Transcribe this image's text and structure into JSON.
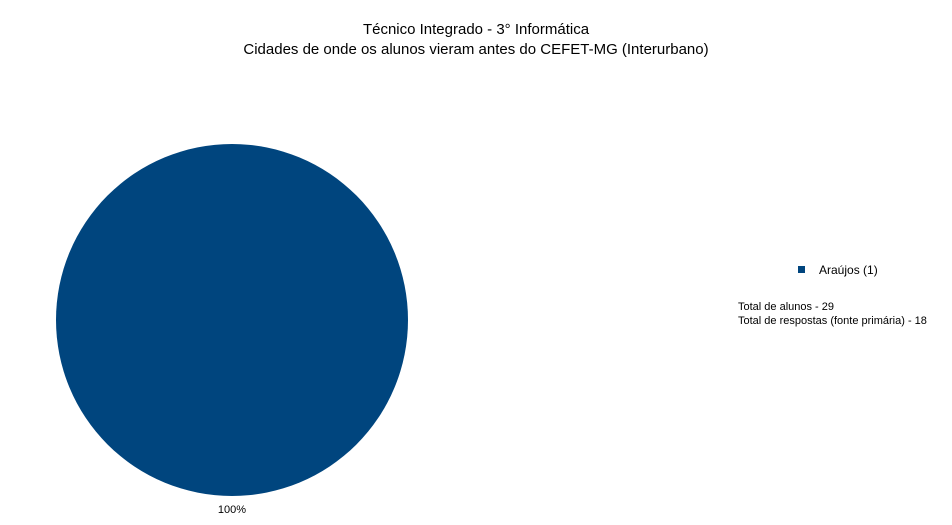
{
  "chart_data": {
    "type": "pie",
    "title": "Técnico Integrado - 3° Informática",
    "subtitle": "Cidades de onde os alunos vieram antes do CEFET-MG (Interurbano)",
    "slices": [
      {
        "label": "Araújos (1)",
        "value": 100,
        "percent_label": "100%",
        "color": "#00457e"
      }
    ],
    "legend_position": "right"
  },
  "notes": {
    "line1": "Total de alunos - 29",
    "line2": "Total de respostas (fonte primária) - 18"
  }
}
